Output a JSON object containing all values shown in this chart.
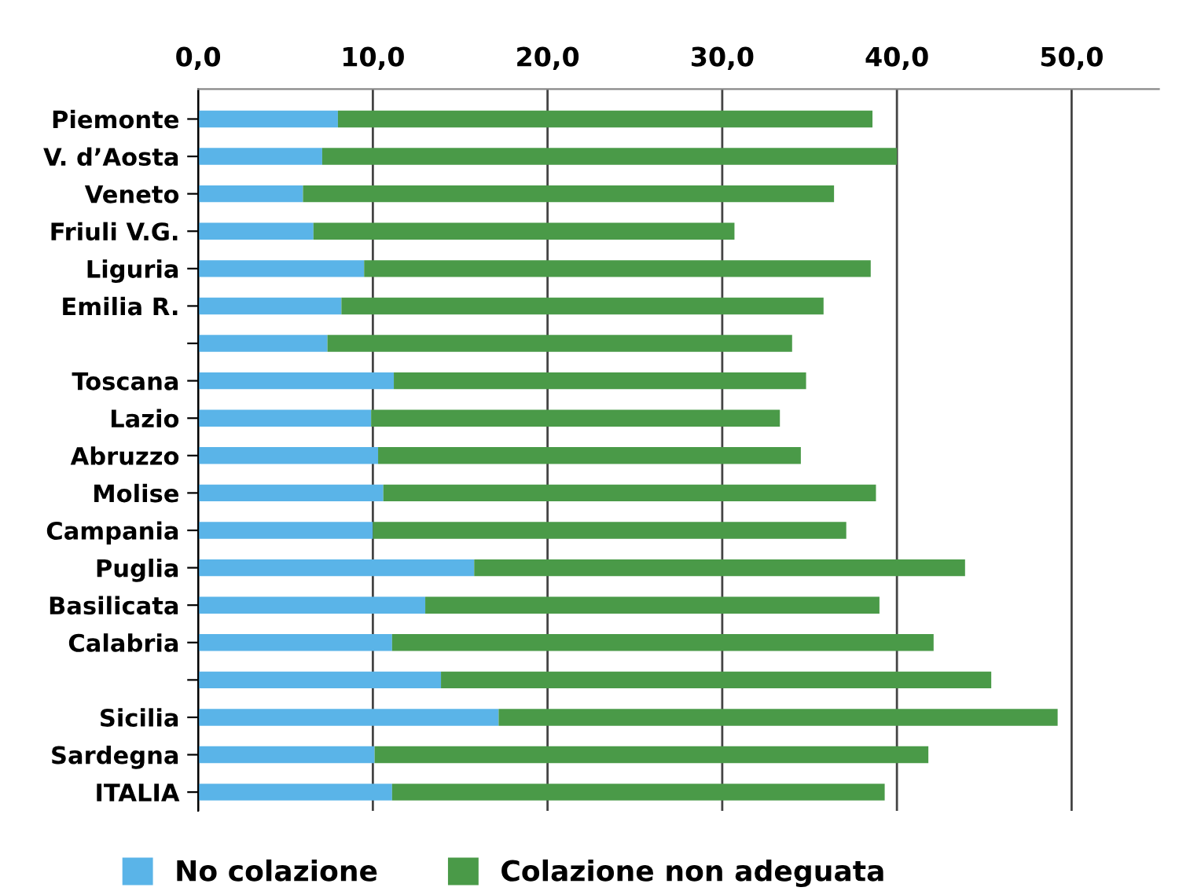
{
  "chart_data": {
    "type": "bar",
    "orientation": "horizontal",
    "stacked": true,
    "categories": [
      "Piemonte",
      "V. d’Aosta",
      "Veneto",
      "Friuli V.G.",
      "Liguria",
      "Emilia R.",
      null,
      "Toscana",
      "Lazio",
      "Abruzzo",
      "Molise",
      "Campania",
      "Puglia",
      "Basilicata",
      "Calabria",
      null,
      "Sicilia",
      "Sardegna",
      "ITALIA"
    ],
    "series": [
      {
        "name": "No colazione",
        "color": "#5ab4e8",
        "values": [
          8.0,
          7.1,
          6.0,
          6.6,
          9.5,
          8.2,
          7.4,
          11.2,
          9.9,
          10.3,
          10.6,
          10.0,
          15.8,
          13.0,
          11.1,
          13.9,
          17.2,
          10.1,
          11.1
        ]
      },
      {
        "name": "Colazione non adeguata",
        "color": "#4a9a48",
        "values": [
          30.6,
          32.9,
          30.4,
          24.1,
          29.0,
          27.6,
          26.6,
          23.6,
          23.4,
          24.2,
          28.2,
          27.1,
          28.1,
          26.0,
          31.0,
          31.5,
          32.0,
          31.7,
          28.2
        ]
      }
    ],
    "xlim": [
      0,
      55
    ],
    "xticks": [
      {
        "value": 0,
        "label": "0,0"
      },
      {
        "value": 10,
        "label": "10,0"
      },
      {
        "value": 20,
        "label": "20,0"
      },
      {
        "value": 30,
        "label": "30,0"
      },
      {
        "value": 40,
        "label": "40,0"
      },
      {
        "value": 50,
        "label": "50,0"
      }
    ],
    "grid": "x",
    "legend": "bottom"
  }
}
